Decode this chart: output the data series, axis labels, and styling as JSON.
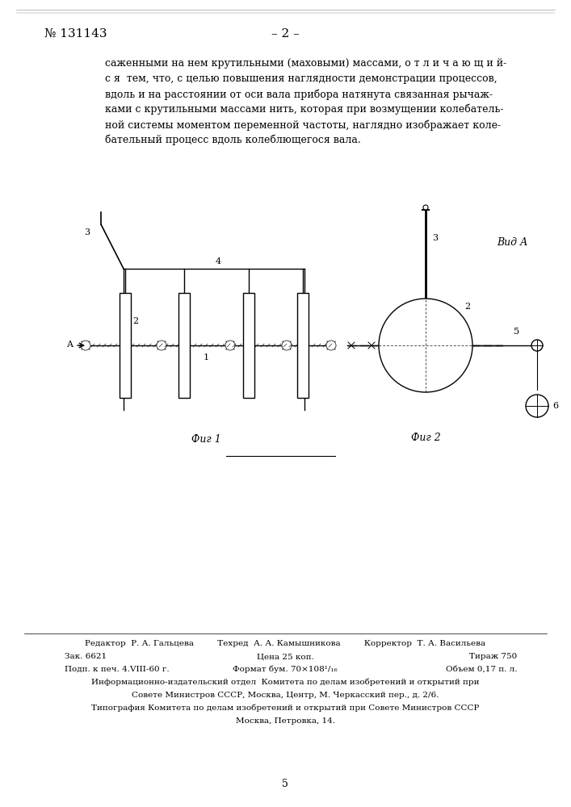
{
  "bg_color": "#ffffff",
  "patent_number": "№ 131143",
  "page_number": "– 2 –",
  "body_text_lines": [
    "саженными на нем крутильными (маховыми) массами, о т л и ч а ю щ и й-",
    "с я  тем, что, с целью повышения наглядности демонстрации процессов,",
    "вдоль и на расстоянии от оси вала прибора натянута связанная рычаж-",
    "ками с крутильными массами нить, которая при возмущении колебатель-",
    "ной системы моментом переменной частоты, наглядно изображает коле-",
    "бательный процесс вдоль колеблющегося вала."
  ],
  "fig1_label": "Фиг 1",
  "fig2_label": "Фиг 2",
  "vid_a_label": "Вид А",
  "page_num_bottom": "5",
  "footer_line1": "Редактор  Р. А. Гальцева         Техред  А. А. Камышникова         Корректор  Т. А. Васильева",
  "footer_line2_left": "Зак. 6621",
  "footer_line2_mid": "Цена 25 коп.",
  "footer_line2_right": "Тираж 750",
  "footer_line3_left": "Подп. к печ. 4.VIII-60 г.",
  "footer_line3_mid": "Формат бум. 70×108¹/₁₆",
  "footer_line3_right": "Объем 0,17 п. л.",
  "footer_line4": "Информационно-издательский отдел  Комитета по делам изобретений и открытий при",
  "footer_line5": "Совете Министров СССР, Москва, Центр, М. Черкасский пер., д. 2/6.",
  "footer_line6": "Типография Комитета по делам изобретений и открытий при Совете Министров СССР",
  "footer_line7": "Москва, Петровка, 14."
}
